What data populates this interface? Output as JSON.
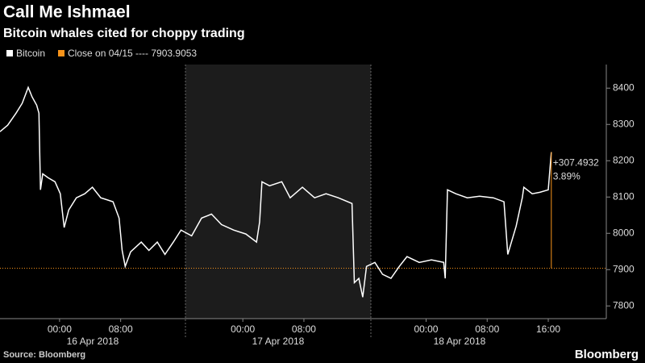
{
  "chart_data": {
    "type": "line",
    "title": "Call Me Ishmael",
    "subtitle": "Bitcoin whales cited for choppy trading",
    "source": "Source: Bloomberg",
    "brand": "Bloomberg",
    "series": [
      {
        "name": "Bitcoin",
        "color": "#ffffff",
        "x": [
          -7.8,
          -6.8,
          -5.7,
          -4.9,
          -4.1,
          -3.6,
          -3.0,
          -2.7,
          -2.5,
          -2.2,
          -1.5,
          -0.6,
          0.1,
          0.6,
          1.2,
          2.2,
          3.3,
          4.3,
          5.4,
          7.0,
          7.8,
          8.2,
          8.6,
          9.3,
          10.7,
          11.7,
          12.8,
          13.8,
          14.9,
          15.9,
          17.3,
          18.6,
          19.9,
          21.2,
          22.8,
          24.4,
          25.8,
          26.2,
          26.5,
          27.5,
          29.1,
          30.2,
          31.8,
          33.4,
          34.9,
          36.5,
          38.3,
          38.6,
          39.2,
          39.7,
          40.2,
          41.3,
          42.3,
          43.4,
          44.5,
          45.5,
          47.1,
          48.7,
          50.3,
          50.5,
          50.8,
          51.9,
          53.4,
          55.0,
          56.8,
          58.2,
          58.7,
          59.8,
          60.6,
          60.8,
          61.9,
          62.9,
          64.0,
          64.4
        ],
        "values": [
          8280,
          8298,
          8331,
          8358,
          8402,
          8376,
          8353,
          8331,
          8120,
          8164,
          8153,
          8142,
          8109,
          8016,
          8064,
          8098,
          8109,
          8127,
          8098,
          8087,
          8042,
          7953,
          7909,
          7949,
          7976,
          7953,
          7976,
          7942,
          7976,
          8009,
          7993,
          8042,
          8053,
          8024,
          8009,
          7998,
          7976,
          8031,
          8142,
          8131,
          8142,
          8098,
          8127,
          8098,
          8109,
          8098,
          8082,
          7864,
          7876,
          7824,
          7909,
          7920,
          7887,
          7876,
          7909,
          7936,
          7920,
          7927,
          7920,
          7876,
          8120,
          8109,
          8098,
          8102,
          8098,
          8087,
          7942,
          8020,
          8098,
          8127,
          8109,
          8113,
          8120,
          8224
        ]
      }
    ],
    "reference_line": {
      "label": "Close on 04/15 ---- 7903.9053",
      "value": 7903.9053,
      "color": "#f7931a"
    },
    "annotations": [
      "+307.4932",
      "3.89%"
    ],
    "annotation_color": "#f7931a",
    "day_labels": [
      "16 Apr 2018",
      "17 Apr 2018",
      "18 Apr 2018"
    ],
    "xlim": [
      -7.8,
      71.6
    ],
    "xticks": [
      {
        "value": 0,
        "label": "00:00"
      },
      {
        "value": 8,
        "label": "08:00"
      },
      {
        "value": 24,
        "label": "00:00"
      },
      {
        "value": 32,
        "label": "08:00"
      },
      {
        "value": 48,
        "label": "00:00"
      },
      {
        "value": 56,
        "label": "08:00"
      },
      {
        "value": 64,
        "label": "16:00"
      }
    ],
    "ylim": [
      7765,
      8465
    ],
    "yticks": [
      7800,
      7900,
      8000,
      8100,
      8200,
      8300,
      8400
    ],
    "grid": false
  }
}
